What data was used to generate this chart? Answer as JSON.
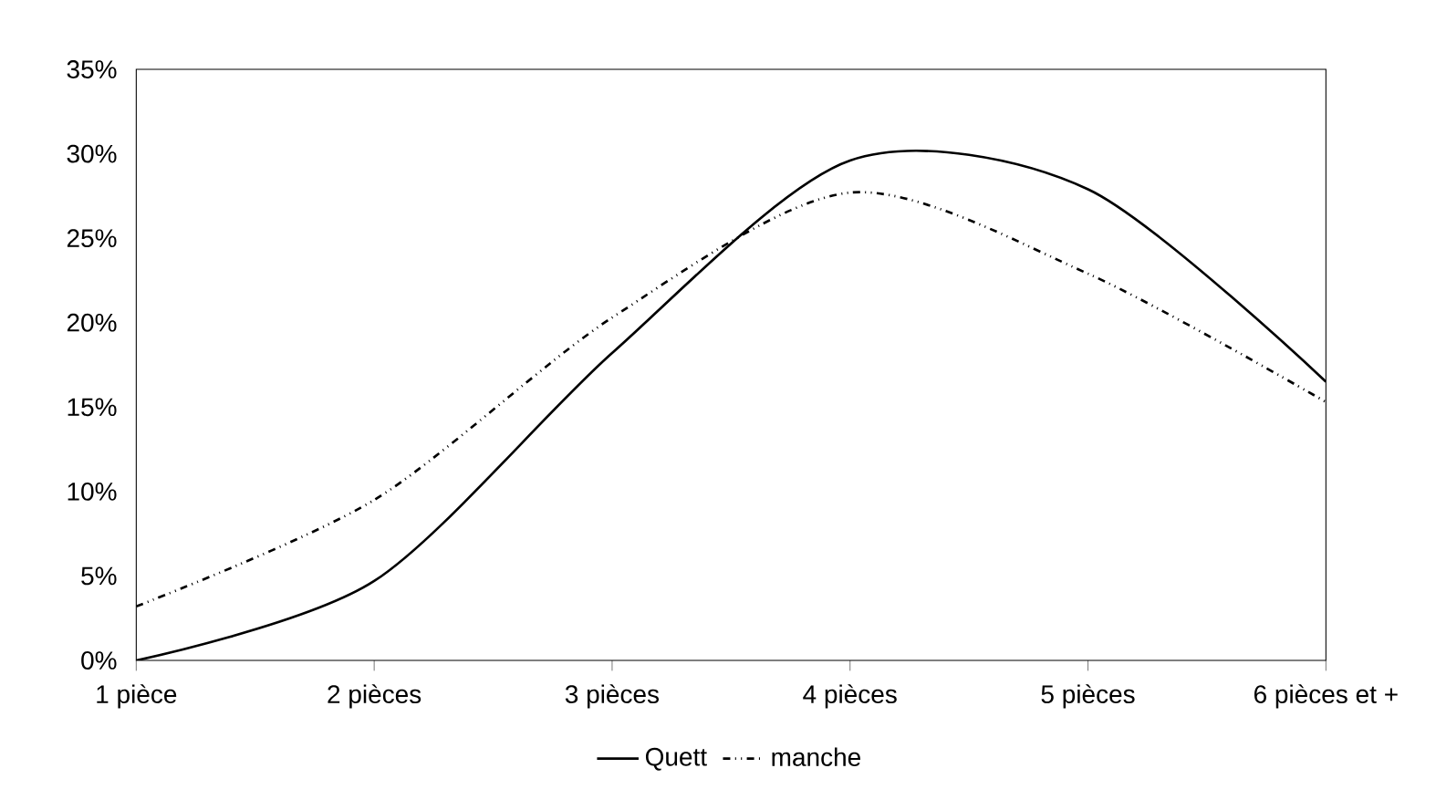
{
  "chart_data": {
    "type": "line",
    "categories": [
      "1 pièce",
      "2 pièces",
      "3 pièces",
      "4 pièces",
      "5 pièces",
      "6 pièces et +"
    ],
    "series": [
      {
        "name": "Quett",
        "color": "#000000",
        "line_style": "solid",
        "values": [
          0,
          4.7,
          18.2,
          29.6,
          27.9,
          16.5
        ]
      },
      {
        "name": "manche",
        "color": "#000000",
        "line_style": "dashdot",
        "values": [
          3.2,
          9.5,
          20.3,
          27.7,
          22.9,
          15.3
        ]
      }
    ],
    "ylim": [
      0,
      35
    ],
    "yticks": [
      {
        "value": 0,
        "label": "0%"
      },
      {
        "value": 5,
        "label": "5%"
      },
      {
        "value": 10,
        "label": "10%"
      },
      {
        "value": 15,
        "label": "15%"
      },
      {
        "value": 20,
        "label": "20%"
      },
      {
        "value": 25,
        "label": "25%"
      },
      {
        "value": 30,
        "label": "30%"
      },
      {
        "value": 35,
        "label": "35%"
      }
    ],
    "grid": false,
    "legend": "bottom",
    "marker": "none"
  }
}
